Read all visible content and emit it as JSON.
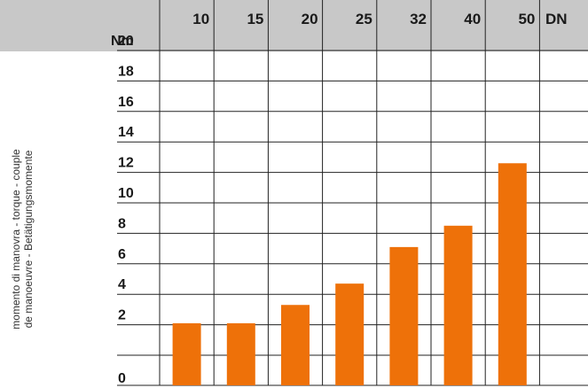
{
  "chart_data": {
    "type": "bar",
    "categories": [
      "10",
      "15",
      "20",
      "25",
      "32",
      "40",
      "50"
    ],
    "x_unit": "DN",
    "values": [
      2.1,
      2.1,
      3.3,
      4.7,
      7.1,
      8.5,
      12.6
    ],
    "y_unit": "Nm",
    "yticks": [
      0,
      2,
      4,
      6,
      8,
      10,
      12,
      14,
      16,
      18,
      20
    ],
    "ylim": [
      0,
      20
    ],
    "ylabel_lines": [
      "momento di manovra - torque - couple",
      "de manoeuvre - Betätigungsmomente"
    ],
    "grid": true,
    "bar_color": "#ee7109",
    "header_color": "#c8c8c8"
  }
}
